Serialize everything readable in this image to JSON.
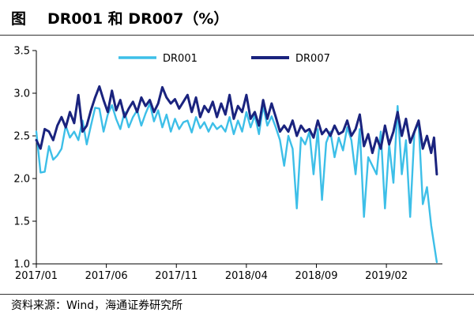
{
  "header": {
    "label": "图",
    "title": "DR001 和 DR007（%）"
  },
  "source": "资料来源：Wind，海通证券研究所",
  "colors": {
    "DR001": "#3dbfe8",
    "DR007": "#1a237e",
    "axis": "#000000"
  },
  "chart_data": {
    "type": "line",
    "x_tick_labels": [
      "2017/01",
      "2017/06",
      "2017/11",
      "2018/04",
      "2018/09",
      "2019/02"
    ],
    "x_tick_positions": [
      0,
      5,
      10,
      15,
      20,
      25
    ],
    "xlim": [
      0,
      29
    ],
    "ylim": [
      1.0,
      3.5
    ],
    "y_ticks": [
      "1.0",
      "1.5",
      "2.0",
      "2.5",
      "3.0",
      "3.5"
    ],
    "grid": false,
    "legend_position": "top-center",
    "series": [
      {
        "name": "DR001",
        "color_key": "DR001",
        "points": [
          [
            0.0,
            2.55
          ],
          [
            0.3,
            2.07
          ],
          [
            0.6,
            2.08
          ],
          [
            0.9,
            2.38
          ],
          [
            1.2,
            2.22
          ],
          [
            1.5,
            2.27
          ],
          [
            1.8,
            2.35
          ],
          [
            2.1,
            2.62
          ],
          [
            2.4,
            2.48
          ],
          [
            2.7,
            2.55
          ],
          [
            3.0,
            2.45
          ],
          [
            3.3,
            2.68
          ],
          [
            3.6,
            2.4
          ],
          [
            3.9,
            2.62
          ],
          [
            4.2,
            2.83
          ],
          [
            4.5,
            2.82
          ],
          [
            4.8,
            2.55
          ],
          [
            5.1,
            2.75
          ],
          [
            5.4,
            2.86
          ],
          [
            5.7,
            2.7
          ],
          [
            6.0,
            2.58
          ],
          [
            6.3,
            2.78
          ],
          [
            6.6,
            2.6
          ],
          [
            6.9,
            2.72
          ],
          [
            7.2,
            2.8
          ],
          [
            7.5,
            2.62
          ],
          [
            7.8,
            2.76
          ],
          [
            8.1,
            2.88
          ],
          [
            8.4,
            2.67
          ],
          [
            8.7,
            2.8
          ],
          [
            9.0,
            2.6
          ],
          [
            9.3,
            2.75
          ],
          [
            9.6,
            2.55
          ],
          [
            9.9,
            2.7
          ],
          [
            10.2,
            2.58
          ],
          [
            10.5,
            2.66
          ],
          [
            10.8,
            2.68
          ],
          [
            11.1,
            2.54
          ],
          [
            11.4,
            2.72
          ],
          [
            11.7,
            2.59
          ],
          [
            12.0,
            2.66
          ],
          [
            12.3,
            2.55
          ],
          [
            12.6,
            2.65
          ],
          [
            12.9,
            2.58
          ],
          [
            13.2,
            2.62
          ],
          [
            13.5,
            2.55
          ],
          [
            13.8,
            2.72
          ],
          [
            14.1,
            2.52
          ],
          [
            14.4,
            2.68
          ],
          [
            14.7,
            2.55
          ],
          [
            15.0,
            2.78
          ],
          [
            15.3,
            2.6
          ],
          [
            15.6,
            2.74
          ],
          [
            15.9,
            2.52
          ],
          [
            16.2,
            2.85
          ],
          [
            16.5,
            2.62
          ],
          [
            16.8,
            2.73
          ],
          [
            17.1,
            2.6
          ],
          [
            17.4,
            2.45
          ],
          [
            17.7,
            2.15
          ],
          [
            18.0,
            2.5
          ],
          [
            18.3,
            2.35
          ],
          [
            18.6,
            1.65
          ],
          [
            18.9,
            2.48
          ],
          [
            19.2,
            2.4
          ],
          [
            19.5,
            2.55
          ],
          [
            19.8,
            2.05
          ],
          [
            20.1,
            2.58
          ],
          [
            20.4,
            1.75
          ],
          [
            20.7,
            2.42
          ],
          [
            21.0,
            2.55
          ],
          [
            21.3,
            2.25
          ],
          [
            21.6,
            2.48
          ],
          [
            21.9,
            2.33
          ],
          [
            22.2,
            2.6
          ],
          [
            22.5,
            2.45
          ],
          [
            22.8,
            2.05
          ],
          [
            23.1,
            2.58
          ],
          [
            23.4,
            1.55
          ],
          [
            23.7,
            2.25
          ],
          [
            24.0,
            2.15
          ],
          [
            24.3,
            2.05
          ],
          [
            24.6,
            2.55
          ],
          [
            24.9,
            1.65
          ],
          [
            25.2,
            2.4
          ],
          [
            25.5,
            1.95
          ],
          [
            25.8,
            2.85
          ],
          [
            26.1,
            2.05
          ],
          [
            26.4,
            2.45
          ],
          [
            26.7,
            1.55
          ],
          [
            27.0,
            2.55
          ],
          [
            27.3,
            2.65
          ],
          [
            27.6,
            1.7
          ],
          [
            27.9,
            1.9
          ],
          [
            28.2,
            1.45
          ],
          [
            28.6,
            1.02
          ]
        ]
      },
      {
        "name": "DR007",
        "color_key": "DR007",
        "points": [
          [
            0.0,
            2.45
          ],
          [
            0.3,
            2.35
          ],
          [
            0.6,
            2.58
          ],
          [
            0.9,
            2.55
          ],
          [
            1.2,
            2.45
          ],
          [
            1.5,
            2.62
          ],
          [
            1.8,
            2.72
          ],
          [
            2.1,
            2.6
          ],
          [
            2.4,
            2.78
          ],
          [
            2.7,
            2.65
          ],
          [
            3.0,
            2.98
          ],
          [
            3.3,
            2.55
          ],
          [
            3.6,
            2.62
          ],
          [
            3.9,
            2.8
          ],
          [
            4.2,
            2.95
          ],
          [
            4.5,
            3.08
          ],
          [
            4.8,
            2.92
          ],
          [
            5.1,
            2.78
          ],
          [
            5.4,
            3.03
          ],
          [
            5.7,
            2.8
          ],
          [
            6.0,
            2.92
          ],
          [
            6.3,
            2.72
          ],
          [
            6.6,
            2.82
          ],
          [
            6.9,
            2.9
          ],
          [
            7.2,
            2.78
          ],
          [
            7.5,
            2.95
          ],
          [
            7.8,
            2.85
          ],
          [
            8.1,
            2.92
          ],
          [
            8.4,
            2.78
          ],
          [
            8.7,
            2.88
          ],
          [
            9.0,
            3.07
          ],
          [
            9.3,
            2.95
          ],
          [
            9.6,
            2.88
          ],
          [
            9.9,
            2.93
          ],
          [
            10.2,
            2.82
          ],
          [
            10.5,
            2.9
          ],
          [
            10.8,
            2.98
          ],
          [
            11.1,
            2.78
          ],
          [
            11.4,
            2.95
          ],
          [
            11.7,
            2.72
          ],
          [
            12.0,
            2.85
          ],
          [
            12.3,
            2.78
          ],
          [
            12.6,
            2.9
          ],
          [
            12.9,
            2.72
          ],
          [
            13.2,
            2.88
          ],
          [
            13.5,
            2.75
          ],
          [
            13.8,
            2.98
          ],
          [
            14.1,
            2.7
          ],
          [
            14.4,
            2.85
          ],
          [
            14.7,
            2.78
          ],
          [
            15.0,
            2.98
          ],
          [
            15.3,
            2.7
          ],
          [
            15.6,
            2.78
          ],
          [
            15.9,
            2.62
          ],
          [
            16.2,
            2.92
          ],
          [
            16.5,
            2.7
          ],
          [
            16.8,
            2.88
          ],
          [
            17.1,
            2.72
          ],
          [
            17.4,
            2.55
          ],
          [
            17.7,
            2.62
          ],
          [
            18.0,
            2.55
          ],
          [
            18.3,
            2.68
          ],
          [
            18.6,
            2.5
          ],
          [
            18.9,
            2.62
          ],
          [
            19.2,
            2.55
          ],
          [
            19.5,
            2.58
          ],
          [
            19.8,
            2.48
          ],
          [
            20.1,
            2.68
          ],
          [
            20.4,
            2.52
          ],
          [
            20.7,
            2.58
          ],
          [
            21.0,
            2.5
          ],
          [
            21.3,
            2.62
          ],
          [
            21.6,
            2.52
          ],
          [
            21.9,
            2.55
          ],
          [
            22.2,
            2.68
          ],
          [
            22.5,
            2.5
          ],
          [
            22.8,
            2.58
          ],
          [
            23.1,
            2.75
          ],
          [
            23.4,
            2.38
          ],
          [
            23.7,
            2.52
          ],
          [
            24.0,
            2.3
          ],
          [
            24.3,
            2.48
          ],
          [
            24.6,
            2.35
          ],
          [
            24.9,
            2.62
          ],
          [
            25.2,
            2.4
          ],
          [
            25.5,
            2.55
          ],
          [
            25.8,
            2.78
          ],
          [
            26.1,
            2.5
          ],
          [
            26.4,
            2.7
          ],
          [
            26.7,
            2.42
          ],
          [
            27.0,
            2.55
          ],
          [
            27.3,
            2.68
          ],
          [
            27.6,
            2.35
          ],
          [
            27.9,
            2.5
          ],
          [
            28.2,
            2.3
          ],
          [
            28.4,
            2.48
          ],
          [
            28.6,
            2.05
          ]
        ]
      }
    ]
  }
}
